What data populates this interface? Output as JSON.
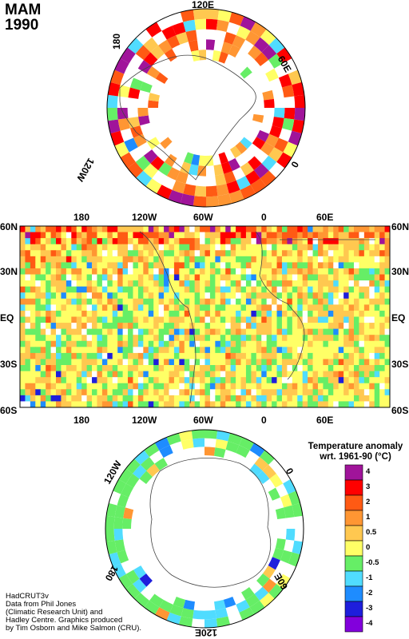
{
  "season": "MAM",
  "year": "1990",
  "north_polar_labels": [
    "120E",
    "60E",
    "0",
    "120W",
    "180"
  ],
  "south_polar_labels": [
    "120W",
    "0",
    "60E",
    "120E",
    "180"
  ],
  "map_lat_labels": [
    "60N",
    "30N",
    "EQ",
    "30S",
    "60S"
  ],
  "map_lon_labels": [
    "180",
    "120W",
    "60W",
    "0",
    "60E"
  ],
  "legend": {
    "title_line1": "Temperature anomaly",
    "title_line2": "wrt. 1961-90  (°C)",
    "labels": [
      "4",
      "3",
      "2",
      "1",
      "0.5",
      "0",
      "-0.5",
      "-1",
      "-2",
      "-3",
      "-4"
    ],
    "colors": [
      "#a0149a",
      "#ff0000",
      "#ff5a14",
      "#ff9633",
      "#ffc850",
      "#ffff66",
      "#66ee66",
      "#50dcff",
      "#1e8cff",
      "#1e1edc",
      "#8200dc"
    ]
  },
  "credits": "HadCRUT3v\nData from Phil Jones\n(Climatic Research Unit) and\nHadley Centre.  Graphics produced\nby Tim Osborn and Mike Salmon (CRU)."
}
